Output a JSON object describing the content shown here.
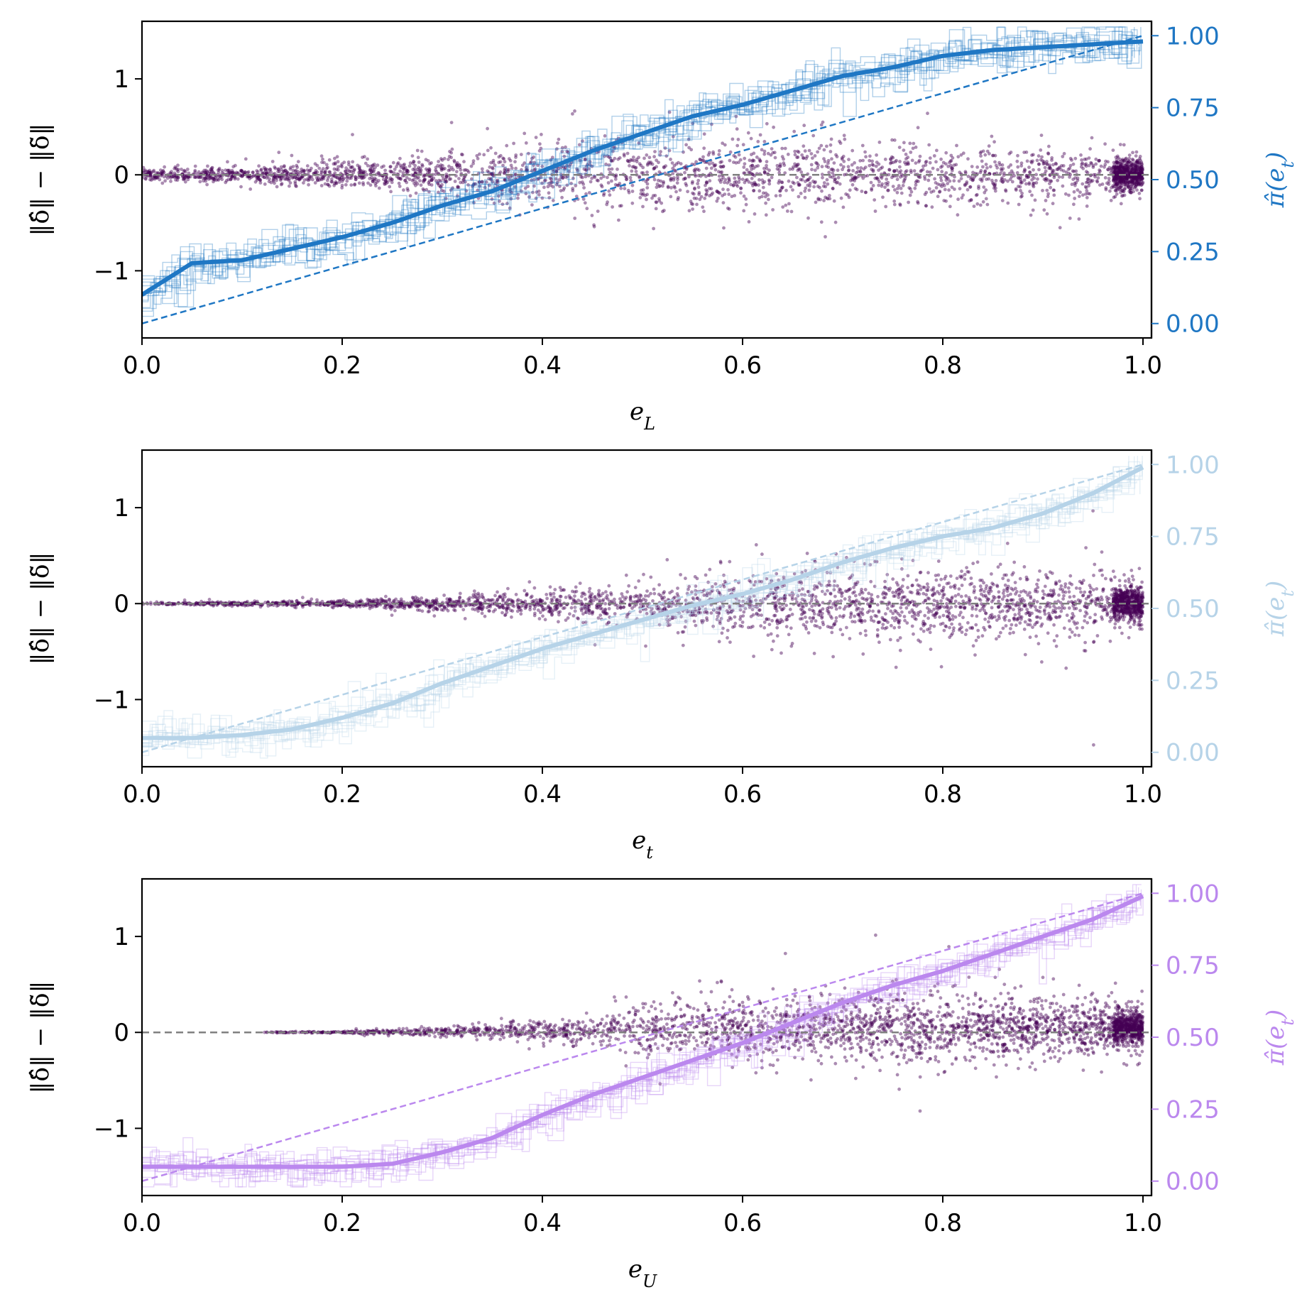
{
  "chart_data": [
    {
      "type": "scatter",
      "xlabel": "e_L",
      "ylabel_left": "‖δ̂‖ − ‖δ̃‖",
      "ylabel_right": "π̂(e_t)",
      "xlim": [
        0.0,
        1.0
      ],
      "ylim_left": [
        -1.7,
        1.6
      ],
      "ylim_right": [
        -0.05,
        1.05
      ],
      "x_ticks": [
        "0.0",
        "0.2",
        "0.4",
        "0.6",
        "0.8",
        "1.0"
      ],
      "y_ticks_left": [
        "−1",
        "0",
        "1"
      ],
      "y_ticks_right": [
        "0.00",
        "0.25",
        "0.50",
        "0.75",
        "1.00"
      ],
      "accent_color": "#1f77c4",
      "scatter_color": "#440154",
      "scatter_pattern": "symmetric",
      "scatter_envelope": {
        "x": [
          0.0,
          0.2,
          0.4,
          0.6,
          0.8,
          0.97,
          1.0
        ],
        "spread": [
          0.05,
          0.12,
          0.3,
          0.35,
          0.28,
          0.25,
          0.12
        ]
      },
      "curve": {
        "x": [
          0.0,
          0.05,
          0.1,
          0.15,
          0.2,
          0.25,
          0.3,
          0.35,
          0.4,
          0.45,
          0.5,
          0.55,
          0.6,
          0.65,
          0.7,
          0.75,
          0.8,
          0.85,
          0.9,
          0.95,
          1.0
        ],
        "y": [
          0.1,
          0.21,
          0.22,
          0.26,
          0.3,
          0.35,
          0.41,
          0.46,
          0.53,
          0.6,
          0.66,
          0.72,
          0.76,
          0.81,
          0.86,
          0.89,
          0.93,
          0.95,
          0.96,
          0.97,
          0.98
        ]
      },
      "reference_line": {
        "x": [
          0.0,
          1.0
        ],
        "y": [
          0.0,
          1.0
        ]
      }
    },
    {
      "type": "scatter",
      "xlabel": "e_t",
      "ylabel_left": "‖δ̂‖ − ‖δ̃‖",
      "ylabel_right": "π̂(e_t)",
      "xlim": [
        0.0,
        1.0
      ],
      "ylim_left": [
        -1.7,
        1.6
      ],
      "ylim_right": [
        -0.05,
        1.05
      ],
      "x_ticks": [
        "0.0",
        "0.2",
        "0.4",
        "0.6",
        "0.8",
        "1.0"
      ],
      "y_ticks_left": [
        "−1",
        "0",
        "1"
      ],
      "y_ticks_right": [
        "0.00",
        "0.25",
        "0.50",
        "0.75",
        "1.00"
      ],
      "accent_color": "#b6d3e8",
      "scatter_color": "#440154",
      "scatter_pattern": "symmetric",
      "scatter_envelope": {
        "x": [
          0.0,
          0.2,
          0.4,
          0.6,
          0.8,
          1.0
        ],
        "spread": [
          0.01,
          0.03,
          0.12,
          0.3,
          0.32,
          0.3
        ]
      },
      "curve": {
        "x": [
          0.0,
          0.05,
          0.1,
          0.15,
          0.2,
          0.25,
          0.3,
          0.35,
          0.4,
          0.45,
          0.5,
          0.55,
          0.6,
          0.65,
          0.7,
          0.75,
          0.8,
          0.85,
          0.9,
          0.95,
          1.0
        ],
        "y": [
          0.05,
          0.05,
          0.06,
          0.08,
          0.12,
          0.17,
          0.24,
          0.3,
          0.36,
          0.41,
          0.46,
          0.51,
          0.55,
          0.6,
          0.66,
          0.71,
          0.75,
          0.78,
          0.83,
          0.9,
          0.99
        ]
      },
      "reference_line": {
        "x": [
          0.0,
          1.0
        ],
        "y": [
          0.0,
          1.0
        ]
      }
    },
    {
      "type": "scatter",
      "xlabel": "e_U",
      "ylabel_left": "‖δ̂‖ − ‖δ̃‖",
      "ylabel_right": "π̂(e_t)",
      "xlim": [
        0.0,
        1.0
      ],
      "ylim_left": [
        -1.7,
        1.6
      ],
      "ylim_right": [
        -0.05,
        1.05
      ],
      "x_ticks": [
        "0.0",
        "0.2",
        "0.4",
        "0.6",
        "0.8",
        "1.0"
      ],
      "y_ticks_left": [
        "−1",
        "0",
        "1"
      ],
      "y_ticks_right": [
        "0.00",
        "0.25",
        "0.50",
        "0.75",
        "1.00"
      ],
      "accent_color": "#bb88ee",
      "scatter_color": "#440154",
      "scatter_pattern": "upper",
      "scatter_envelope": {
        "x": [
          0.0,
          0.2,
          0.4,
          0.5,
          0.6,
          0.8,
          1.0
        ],
        "spread": [
          0.0,
          0.01,
          0.1,
          0.25,
          0.35,
          0.35,
          0.3
        ]
      },
      "curve": {
        "x": [
          0.0,
          0.05,
          0.1,
          0.15,
          0.2,
          0.25,
          0.3,
          0.35,
          0.4,
          0.45,
          0.5,
          0.55,
          0.6,
          0.65,
          0.7,
          0.75,
          0.8,
          0.85,
          0.9,
          0.95,
          1.0
        ],
        "y": [
          0.05,
          0.05,
          0.05,
          0.05,
          0.05,
          0.06,
          0.1,
          0.15,
          0.23,
          0.3,
          0.36,
          0.42,
          0.48,
          0.55,
          0.62,
          0.68,
          0.73,
          0.79,
          0.85,
          0.91,
          0.99
        ]
      },
      "reference_line": {
        "x": [
          0.0,
          1.0
        ],
        "y": [
          0.0,
          1.0
        ]
      }
    }
  ]
}
